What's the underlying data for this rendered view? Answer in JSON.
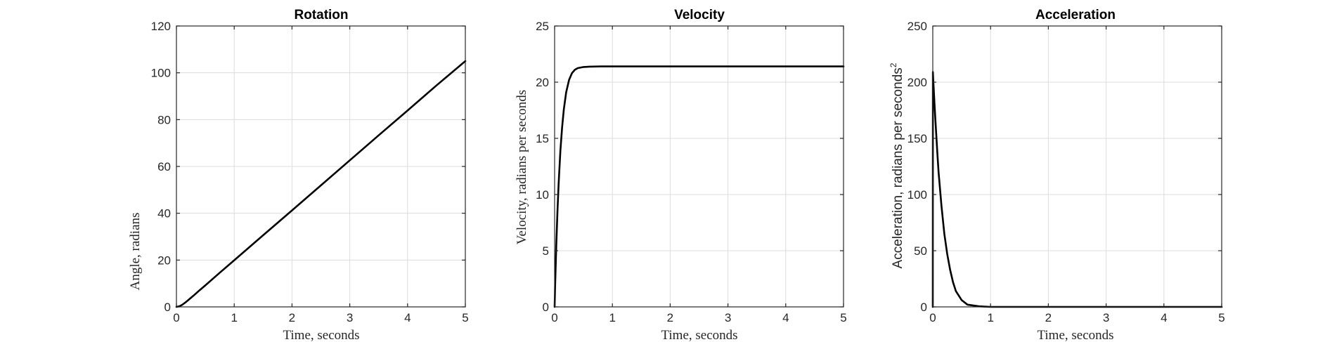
{
  "chart_data": [
    {
      "type": "line",
      "title": "Rotation",
      "xlabel": "Time, seconds",
      "ylabel": "Angle, radians",
      "xlim": [
        0,
        5
      ],
      "ylim": [
        0,
        120
      ],
      "xticks": [
        0,
        1,
        2,
        3,
        4,
        5
      ],
      "yticks": [
        0,
        20,
        40,
        60,
        80,
        100,
        120
      ],
      "grid": true,
      "series": [
        {
          "name": "Angle",
          "x": [
            0,
            0.05,
            0.1,
            0.15,
            0.2,
            0.3,
            0.4,
            0.5,
            0.75,
            1,
            1.5,
            2,
            2.5,
            3,
            3.5,
            4,
            4.5,
            5
          ],
          "y": [
            0,
            0.25,
            0.9,
            1.8,
            2.8,
            4.9,
            7.1,
            9.2,
            14.6,
            19.9,
            30.6,
            41.2,
            51.9,
            62.6,
            73.3,
            83.9,
            94.6,
            105
          ]
        }
      ]
    },
    {
      "type": "line",
      "title": "Velocity",
      "xlabel": "Time, seconds",
      "ylabel": "Velocity, radians per seconds",
      "xlim": [
        0,
        5
      ],
      "ylim": [
        0,
        25
      ],
      "xticks": [
        0,
        1,
        2,
        3,
        4,
        5
      ],
      "yticks": [
        0,
        5,
        10,
        15,
        20,
        25
      ],
      "grid": true,
      "series": [
        {
          "name": "Velocity",
          "x": [
            0,
            0.01,
            0.02,
            0.03,
            0.05,
            0.07,
            0.1,
            0.13,
            0.16,
            0.2,
            0.25,
            0.3,
            0.35,
            0.4,
            0.5,
            0.6,
            0.8,
            1,
            2,
            3,
            4,
            5
          ],
          "y": [
            0,
            2.1,
            3.9,
            5.7,
            8.6,
            11.0,
            13.9,
            16.0,
            17.6,
            19.1,
            20.2,
            20.8,
            21.1,
            21.25,
            21.35,
            21.38,
            21.4,
            21.4,
            21.4,
            21.4,
            21.4,
            21.4
          ]
        }
      ]
    },
    {
      "type": "line",
      "title": "Acceleration",
      "xlabel": "Time, seconds",
      "ylabel": "Acceleration, radians per seconds",
      "ylabel_superscript": "2",
      "xlim": [
        0,
        5
      ],
      "ylim": [
        0,
        250
      ],
      "xticks": [
        0,
        1,
        2,
        3,
        4,
        5
      ],
      "yticks": [
        0,
        50,
        100,
        150,
        200,
        250
      ],
      "grid": true,
      "series": [
        {
          "name": "Acceleration",
          "x": [
            0,
            0.002,
            0.01,
            0.03,
            0.05,
            0.08,
            0.1,
            0.15,
            0.2,
            0.25,
            0.3,
            0.35,
            0.4,
            0.5,
            0.6,
            0.8,
            1,
            2,
            3,
            4,
            5
          ],
          "y": [
            0,
            209,
            200,
            180,
            162,
            136,
            120,
            90,
            65,
            47,
            33,
            22,
            14,
            6,
            2,
            0.5,
            0,
            0,
            0,
            0,
            0
          ]
        }
      ]
    }
  ]
}
